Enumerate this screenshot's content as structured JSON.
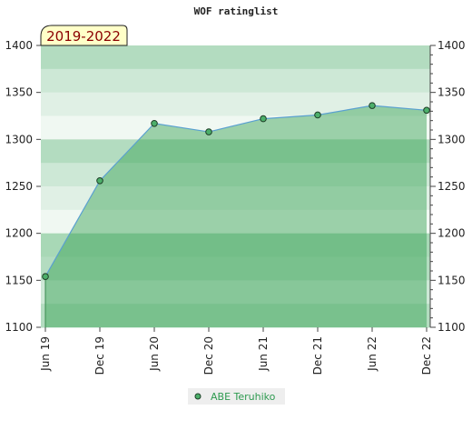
{
  "chart_data": {
    "type": "area",
    "title": "WOF ratinglist",
    "badge": "2019-2022",
    "categories": [
      "Jun 19",
      "Dec 19",
      "Jun 20",
      "Dec 20",
      "Jun 21",
      "Dec 21",
      "Jun 22",
      "Dec 22"
    ],
    "series": [
      {
        "name": "ABE Teruhiko",
        "color": "#5aa0d0",
        "values": [
          1154,
          1256,
          1317,
          1308,
          1322,
          1326,
          1336,
          1331
        ]
      }
    ],
    "ylim": [
      1100,
      1400
    ],
    "yticks": [
      1100,
      1150,
      1200,
      1250,
      1300,
      1350,
      1400
    ],
    "y2lim": [
      1100,
      1400
    ],
    "y2ticks": [
      1100,
      1150,
      1200,
      1250,
      1300,
      1350,
      1400
    ]
  }
}
